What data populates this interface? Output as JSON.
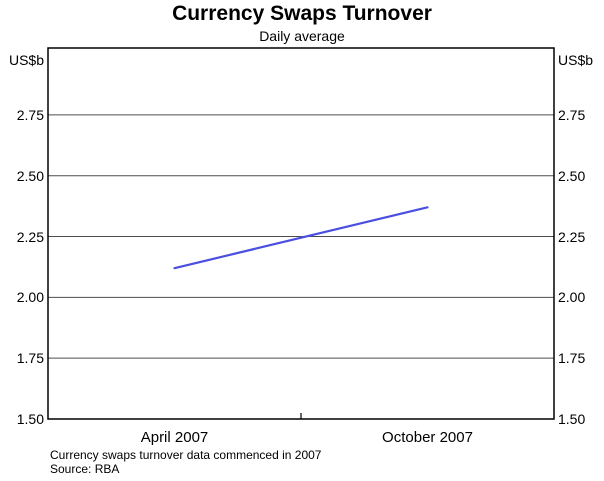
{
  "footnotes": [
    "Currency swaps turnover data commenced in 2007",
    "Source: RBA"
  ],
  "chart_data": {
    "type": "line",
    "title": "Currency Swaps Turnover",
    "subtitle": "Daily average",
    "unit": "US$b",
    "categories": [
      "April 2007",
      "October 2007"
    ],
    "values": [
      2.12,
      2.37
    ],
    "ylim": [
      1.5,
      3.025
    ],
    "yticks": [
      1.5,
      1.75,
      2.0,
      2.25,
      2.5,
      2.75
    ],
    "ytick_format_decimals": 2,
    "grid": true,
    "legend_position": "none",
    "colors": {
      "line": "#4a4fe0",
      "grid": "#4d4d4d",
      "axis": "#000000",
      "text": "#000000",
      "background": "#ffffff"
    }
  }
}
